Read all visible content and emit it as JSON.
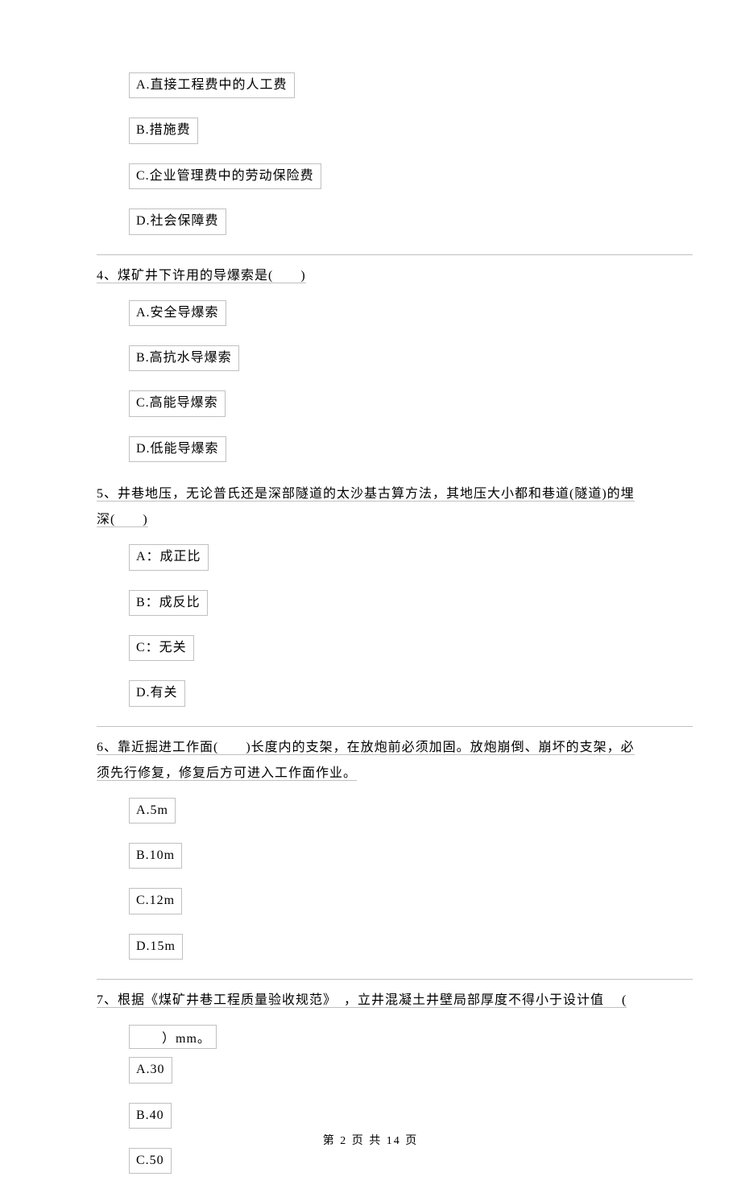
{
  "q3_options": {
    "a": "A.直接工程费中的人工费",
    "b": "B.措施费",
    "c": "C.企业管理费中的劳动保险费",
    "d": "D.社会保障费"
  },
  "q4": {
    "text": "4、煤矿井下许用的导爆索是(　　)",
    "options": {
      "a": "A.安全导爆索",
      "b": "B.高抗水导爆索",
      "c": "C.高能导爆索",
      "d": "D.低能导爆索"
    }
  },
  "q5": {
    "text1": "5、井巷地压，无论普氏还是深部隧道的太沙基古算方法，其地压大小都和巷道(隧道)的埋",
    "text2": "深(　　)",
    "options": {
      "a": "A：成正比",
      "b": "B：成反比",
      "c": "C：无关",
      "d": "D.有关"
    }
  },
  "q6": {
    "text1": "6、靠近掘进工作面(　　)长度内的支架，在放炮前必须加固。放炮崩倒、崩坏的支架，必",
    "text2": "须先行修复，修复后方可进入工作面作业。",
    "options": {
      "a": "A.5m",
      "b": "B.10m",
      "c": "C.12m",
      "d": "D.15m"
    }
  },
  "q7": {
    "text1": "7、根据《煤矿井巷工程质量验收规范》　，立井混凝土井壁局部厚度不得小于设计值　 (",
    "text2": "　　）mm。",
    "options": {
      "a": "A.30",
      "b": "B.40",
      "c": "C.50"
    }
  },
  "footer": "第 2 页 共 14 页",
  "colors": {
    "border": "#c0c0c0",
    "background": "#ffffff",
    "text": "#000000"
  }
}
